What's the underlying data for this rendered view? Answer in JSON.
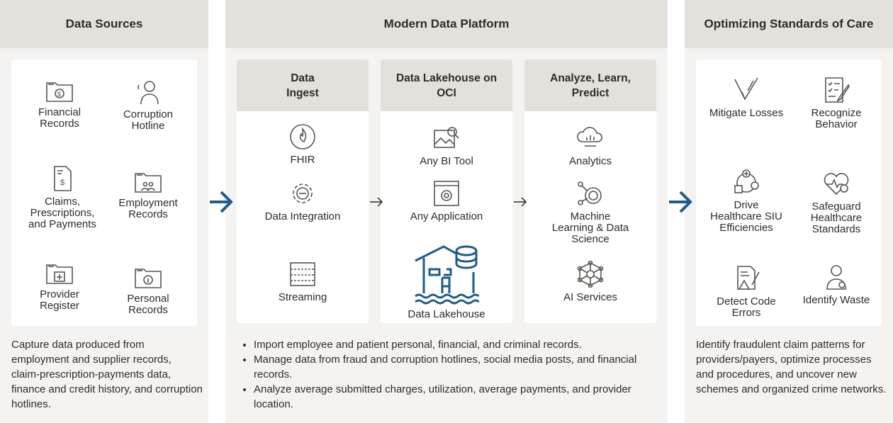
{
  "data_sources": {
    "title": "Data Sources",
    "items": [
      {
        "label": "Financial Records",
        "icon": "folder-dollar-icon"
      },
      {
        "label": "Corruption Hotline",
        "icon": "headset-person-icon"
      },
      {
        "label": "Claims, Prescriptions, and Payments",
        "icon": "document-dollar-icon"
      },
      {
        "label": "Employment Records",
        "icon": "folder-people-icon"
      },
      {
        "label": "Provider Register",
        "icon": "folder-calendar-icon"
      },
      {
        "label": "Personal Records",
        "icon": "folder-info-icon"
      }
    ],
    "description": "Capture data produced from employment and supplier records, claim-prescription-payments data, finance and credit history, and corruption hotlines."
  },
  "platform": {
    "title": "Modern Data Platform",
    "columns": [
      {
        "title": "Data Ingest",
        "items": [
          {
            "label": "FHIR",
            "icon": "flame-icon"
          },
          {
            "label": "Data Integration",
            "icon": "gear-integration-icon"
          },
          {
            "label": "Streaming",
            "icon": "streaming-icon"
          }
        ]
      },
      {
        "title": "Data Lakehouse on OCI",
        "items": [
          {
            "label": "Any BI Tool",
            "icon": "image-search-icon"
          },
          {
            "label": "Any Application",
            "icon": "app-gear-icon"
          },
          {
            "label": "Data Lakehouse",
            "icon": "lakehouse-icon"
          }
        ]
      },
      {
        "title": "Analyze, Learn, Predict",
        "items": [
          {
            "label": "Analytics",
            "icon": "cloud-chart-icon"
          },
          {
            "label": "Machine Learning & Data Science",
            "icon": "ml-icon"
          },
          {
            "label": "AI Services",
            "icon": "network-icon"
          }
        ]
      }
    ],
    "bullets": [
      "Import employee and patient personal, financial, and criminal records.",
      "Manage data from fraud and corruption hotlines, social media posts, and financial records.",
      "Analyze average submitted charges, utilization, average payments, and provider location."
    ]
  },
  "outcomes": {
    "title": "Optimizing Standards of Care",
    "items": [
      {
        "label": "Mitigate Losses",
        "icon": "arrow-down-icon"
      },
      {
        "label": "Recognize Behavior",
        "icon": "checklist-pen-icon"
      },
      {
        "label": "Drive Healthcare SIU Efficiencies",
        "icon": "health-cycle-icon"
      },
      {
        "label": "Safeguard Healthcare Standards",
        "icon": "heart-check-icon"
      },
      {
        "label": "Detect Code Errors",
        "icon": "document-warning-icon"
      },
      {
        "label": "Identify Waste",
        "icon": "person-check-icon"
      }
    ],
    "description": "Identify fraudulent claim patterns for providers/payers, optimize processes and procedures, and uncover new schemes and organized crime networks."
  },
  "colors": {
    "accent": "#1f5c8c",
    "icon": "#5a5550",
    "header": "#e4e1dc",
    "panel": "#f4f3f1"
  }
}
